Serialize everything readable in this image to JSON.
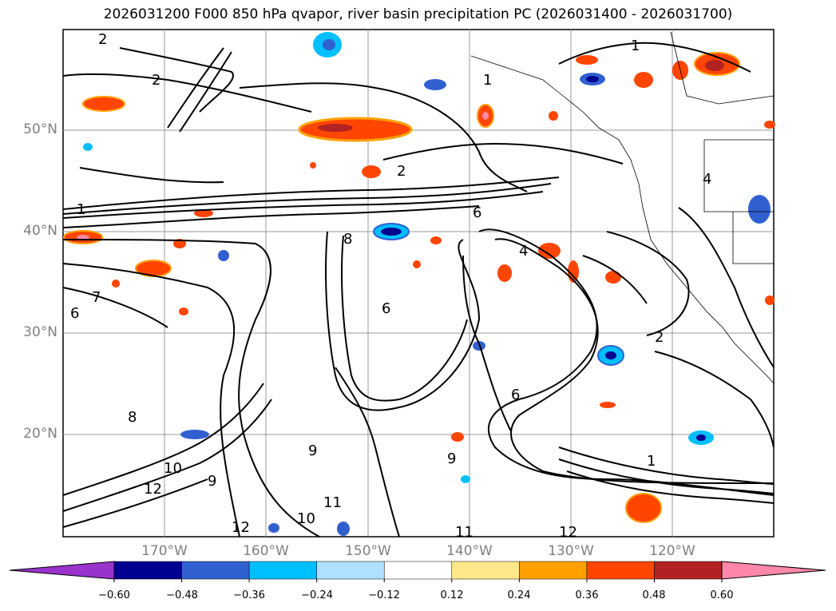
{
  "title": "2026031200 F000 850 hPa qvapor, river basin precipitation PC (2026031400 - 2026031700)",
  "map": {
    "lat_labels": [
      "50°N",
      "40°N",
      "30°N",
      "20°N"
    ],
    "lon_labels": [
      "170°W",
      "160°W",
      "150°W",
      "140°W",
      "130°W",
      "120°W"
    ],
    "contour_labels": [
      "2",
      "1",
      "2",
      "1",
      "2",
      "4",
      "1",
      "6",
      "8",
      "6",
      "4",
      "2",
      "1",
      "6",
      "9",
      "11",
      "12",
      "10",
      "9",
      "8",
      "7",
      "6",
      "12",
      "12",
      "11",
      "10",
      "9"
    ]
  },
  "colorbar": {
    "ticks": [
      "−0.60",
      "−0.48",
      "−0.36",
      "−0.24",
      "−0.12",
      "0.12",
      "0.24",
      "0.36",
      "0.48",
      "0.60"
    ],
    "colors": [
      "#9933cc",
      "#000090",
      "#3060d0",
      "#00bfff",
      "#b0e0ff",
      "#ffffff",
      "#ffe78a",
      "#ffa000",
      "#ff4500",
      "#b22222",
      "#ff88aa"
    ]
  }
}
